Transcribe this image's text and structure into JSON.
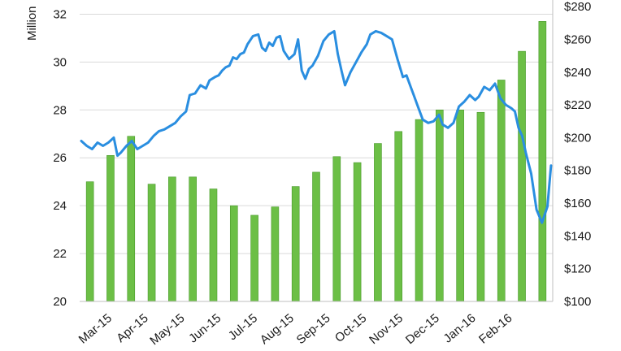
{
  "chart_data": {
    "type": "bar+line",
    "title": "",
    "left_axis": {
      "label": "Million",
      "range": [
        20,
        33
      ],
      "ticks": [
        20,
        22,
        24,
        26,
        28,
        30,
        32
      ]
    },
    "right_axis": {
      "label": "",
      "range": [
        100,
        290
      ],
      "ticks": [
        "$100",
        "$120",
        "$140",
        "$160",
        "$180",
        "$200",
        "$220",
        "$240",
        "$260",
        "$280"
      ],
      "tick_values": [
        100,
        120,
        140,
        160,
        180,
        200,
        220,
        240,
        260,
        280
      ]
    },
    "x_ticks": [
      "Mar-15",
      "Apr-15",
      "May-15",
      "Jun-15",
      "Jul-15",
      "Aug-15",
      "Sep-15",
      "Oct-15",
      "Nov-15",
      "Dec-15",
      "Jan-16",
      "Feb-16"
    ],
    "grid": true,
    "colors": {
      "bars": "#6cbf46",
      "bars_edge": "#4a9a2c",
      "line": "#2a8ee0",
      "grid": "#d9d9d9"
    },
    "bar_series": {
      "axis": "left",
      "values": [
        25.0,
        26.1,
        26.9,
        24.9,
        25.2,
        25.2,
        24.7,
        24.0,
        23.6,
        23.95,
        24.8,
        25.4,
        26.05,
        25.8,
        26.6,
        27.1,
        27.6,
        28.0,
        28.0,
        27.9,
        29.25,
        30.45,
        31.7
      ]
    },
    "line_series": {
      "axis": "right",
      "x": [
        0,
        0.15,
        0.3,
        0.45,
        0.6,
        0.75,
        0.9,
        1.0,
        1.1,
        1.25,
        1.4,
        1.55,
        1.7,
        1.85,
        2.0,
        2.15,
        2.3,
        2.45,
        2.6,
        2.75,
        2.9,
        3.0,
        3.15,
        3.3,
        3.45,
        3.55,
        3.7,
        3.8,
        3.9,
        4.0,
        4.1,
        4.2,
        4.3,
        4.4,
        4.5,
        4.6,
        4.75,
        4.9,
        5.0,
        5.1,
        5.2,
        5.3,
        5.4,
        5.5,
        5.6,
        5.75,
        5.9,
        6.0,
        6.1,
        6.2,
        6.3,
        6.4,
        6.55,
        6.7,
        6.85,
        7.0,
        7.1,
        7.2,
        7.3,
        7.45,
        7.6,
        7.75,
        7.9,
        8.0,
        8.15,
        8.3,
        8.45,
        8.6,
        8.75,
        8.9,
        9.0,
        9.1,
        9.2,
        9.3,
        9.45,
        9.6,
        9.75,
        9.9,
        10.0,
        10.15,
        10.3,
        10.45,
        10.6,
        10.75,
        10.9,
        11.0,
        11.15,
        11.3,
        11.45,
        11.6,
        11.75,
        11.9,
        12.0,
        12.1,
        12.2,
        12.3,
        12.45,
        12.6,
        12.75,
        12.9,
        13.0
      ],
      "values": [
        198,
        195,
        193,
        197,
        195,
        197,
        200,
        189,
        191,
        195,
        198,
        193,
        195,
        197,
        201,
        204,
        205,
        207,
        209,
        213,
        216,
        226,
        227,
        232,
        230,
        235,
        237,
        238,
        241,
        243,
        244,
        249,
        248,
        251,
        252,
        257,
        262,
        263,
        255,
        253,
        258,
        256,
        261,
        262,
        253,
        248,
        251,
        260,
        241,
        236,
        242,
        244,
        250,
        259,
        263,
        265,
        251,
        241,
        232,
        240,
        246,
        252,
        257,
        263,
        265,
        264,
        262,
        260,
        248,
        237,
        238,
        232,
        226,
        220,
        211,
        209,
        210,
        214,
        208,
        206,
        209,
        219,
        222,
        226,
        223,
        225,
        231,
        229,
        233,
        224,
        220,
        218,
        216,
        206,
        201,
        191,
        178,
        156,
        148,
        158,
        183
      ]
    }
  }
}
